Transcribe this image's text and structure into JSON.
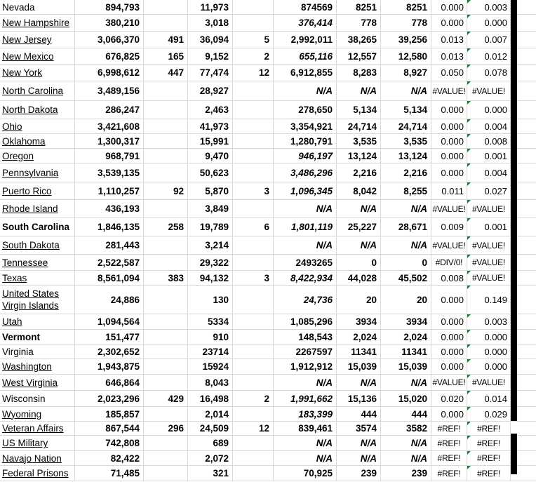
{
  "sheet": {
    "gridline_color": "#d9d9d9",
    "thick_border_color": "#000000",
    "error_indicator_color": "#1e7b3c",
    "error_indicator_shape": "green-triangle-top-left-of-last-column-cell",
    "rows": [
      {
        "name": "Nevada",
        "u": false,
        "nb": false,
        "b": "894,793",
        "c": "",
        "d": "11,973",
        "e": "",
        "f": "874569",
        "fi": false,
        "g": "8251",
        "h": "8251",
        "i": "0.000",
        "j": "0.003"
      },
      {
        "name": "New Hampshire",
        "u": true,
        "nb": false,
        "b": "380,210",
        "c": "",
        "d": "3,018",
        "e": "",
        "f": "376,414",
        "fi": true,
        "g": "778",
        "h": "778",
        "i": "0.000",
        "j": "0.000"
      },
      {
        "name": "New Jersey",
        "u": true,
        "nb": false,
        "b": "3,066,370",
        "c": "491",
        "d": "36,094",
        "e": "5",
        "f": "2,992,011",
        "fi": false,
        "g": "38,265",
        "h": "39,256",
        "i": "0.013",
        "j": "0.007"
      },
      {
        "name": "New Mexico",
        "u": true,
        "nb": false,
        "b": "676,825",
        "c": "165",
        "d": "9,152",
        "e": "2",
        "f": "655,116",
        "fi": true,
        "g": "12,557",
        "h": "12,580",
        "i": "0.013",
        "j": "0.012"
      },
      {
        "name": "New York",
        "u": true,
        "nb": false,
        "b": "6,998,612",
        "c": "447",
        "d": "77,474",
        "e": "12",
        "f": "6,912,855",
        "fi": false,
        "g": "8,283",
        "h": "8,927",
        "i": "0.050",
        "j": "0.078"
      },
      {
        "name": "North Carolina",
        "u": true,
        "nb": false,
        "b": "3,489,156",
        "c": "",
        "d": "28,927",
        "e": "",
        "f": "N/A",
        "fi": true,
        "g": "N/A",
        "h": "N/A",
        "i": "#VALUE!",
        "j": "#VALUE!"
      },
      {
        "name": "North Dakota",
        "u": true,
        "nb": false,
        "b": "286,247",
        "c": "",
        "d": "2,463",
        "e": "",
        "f": "278,650",
        "fi": false,
        "g": "5,134",
        "h": "5,134",
        "i": "0.000",
        "j": "0.000"
      },
      {
        "name": "Ohio",
        "u": true,
        "nb": false,
        "b": "3,421,608",
        "c": "",
        "d": "41,973",
        "e": "",
        "f": "3,354,921",
        "fi": false,
        "g": "24,714",
        "h": "24,714",
        "i": "0.000",
        "j": "0.004"
      },
      {
        "name": "Oklahoma",
        "u": true,
        "nb": false,
        "b": "1,300,317",
        "c": "",
        "d": "15,991",
        "e": "",
        "f": "1,280,791",
        "fi": false,
        "g": "3,535",
        "h": "3,535",
        "i": "0.000",
        "j": "0.008"
      },
      {
        "name": "Oregon",
        "u": true,
        "nb": false,
        "b": "968,791",
        "c": "",
        "d": "9,470",
        "e": "",
        "f": "946,197",
        "fi": true,
        "g": "13,124",
        "h": "13,124",
        "i": "0.000",
        "j": "0.001"
      },
      {
        "name": "Pennsylvania",
        "u": true,
        "nb": false,
        "b": "3,539,135",
        "c": "",
        "d": "50,623",
        "e": "",
        "f": "3,486,296",
        "fi": true,
        "g": "2,216",
        "h": "2,216",
        "i": "0.000",
        "j": "0.004"
      },
      {
        "name": "Puerto Rico",
        "u": true,
        "nb": false,
        "b": "1,110,257",
        "c": "92",
        "d": "5,870",
        "e": "3",
        "f": "1,096,345",
        "fi": true,
        "g": "8,042",
        "h": "8,255",
        "i": "0.011",
        "j": "0.027"
      },
      {
        "name": "Rhode Island",
        "u": true,
        "nb": false,
        "b": "436,193",
        "c": "",
        "d": "3,849",
        "e": "",
        "f": "N/A",
        "fi": true,
        "g": "N/A",
        "h": "N/A",
        "i": "#VALUE!",
        "j": "#VALUE!"
      },
      {
        "name": "South Carolina",
        "u": false,
        "nb": true,
        "b": "1,846,135",
        "c": "258",
        "d": "19,789",
        "e": "6",
        "f": "1,801,119",
        "fi": true,
        "g": "25,227",
        "h": "28,671",
        "i": "0.009",
        "j": "0.001"
      },
      {
        "name": "South Dakota",
        "u": true,
        "nb": false,
        "b": "281,443",
        "c": "",
        "d": "3,214",
        "e": "",
        "f": "N/A",
        "fi": true,
        "g": "N/A",
        "h": "N/A",
        "i": "#VALUE!",
        "j": "#VALUE!"
      },
      {
        "name": "Tennessee",
        "u": true,
        "nb": false,
        "b": "2,522,587",
        "c": "",
        "d": "29,322",
        "e": "",
        "f": "2493265",
        "fi": false,
        "g": "0",
        "h": "0",
        "i": "#DIV/0!",
        "j": "#VALUE!"
      },
      {
        "name": "Texas",
        "u": true,
        "nb": false,
        "b": "8,561,094",
        "c": "383",
        "d": "94,132",
        "e": "3",
        "f": "8,422,934",
        "fi": true,
        "g": "44,028",
        "h": "45,502",
        "i": "0.008",
        "j": "#VALUE!"
      },
      {
        "name": "United States Virgin Islands",
        "u": true,
        "nb": false,
        "b": "24,886",
        "c": "",
        "d": "130",
        "e": "",
        "f": "24,736",
        "fi": true,
        "g": "20",
        "h": "20",
        "i": "0.000",
        "j": "0.149"
      },
      {
        "name": "Utah",
        "u": true,
        "nb": false,
        "b": "1,094,564",
        "c": "",
        "d": "5334",
        "e": "",
        "f": "1,085,296",
        "fi": false,
        "g": "3934",
        "h": "3934",
        "i": "0.000",
        "j": "0.003"
      },
      {
        "name": "Vermont",
        "u": false,
        "nb": true,
        "b": "151,477",
        "c": "",
        "d": "910",
        "e": "",
        "f": "148,543",
        "fi": false,
        "g": "2,024",
        "h": "2,024",
        "i": "0.000",
        "j": "0.000"
      },
      {
        "name": "Virginia",
        "u": false,
        "nb": false,
        "b": "2,302,652",
        "c": "",
        "d": "23714",
        "e": "",
        "f": "2267597",
        "fi": false,
        "g": "11341",
        "h": "11341",
        "i": "0.000",
        "j": "0.000"
      },
      {
        "name": "Washington",
        "u": true,
        "nb": false,
        "b": "1,943,875",
        "c": "",
        "d": "15924",
        "e": "",
        "f": "1,912,912",
        "fi": false,
        "g": "15,039",
        "h": "15,039",
        "i": "0.000",
        "j": "0.000"
      },
      {
        "name": "West Virginia",
        "u": true,
        "nb": false,
        "b": "646,864",
        "c": "",
        "d": "8,043",
        "e": "",
        "f": "N/A",
        "fi": true,
        "g": "N/A",
        "h": "N/A",
        "i": "#VALUE!",
        "j": "#VALUE!"
      },
      {
        "name": "Wisconsin",
        "u": false,
        "nb": false,
        "b": "2,023,296",
        "c": "429",
        "d": "16,498",
        "e": "2",
        "f": "1,991,662",
        "fi": true,
        "g": "15,136",
        "h": "15,020",
        "i": "0.020",
        "j": "0.014"
      },
      {
        "name": "Wyoming",
        "u": true,
        "nb": false,
        "b": "185,857",
        "c": "",
        "d": "2,014",
        "e": "",
        "f": "183,399",
        "fi": true,
        "g": "444",
        "h": "444",
        "i": "0.000",
        "j": "0.029"
      },
      {
        "name": "Veteran Affairs",
        "u": true,
        "nb": false,
        "b": "867,544",
        "c": "296",
        "d": "24,509",
        "e": "12",
        "f": "839,461",
        "fi": false,
        "g": "3574",
        "h": "3582",
        "i": "#REF!",
        "j": "#REF!"
      },
      {
        "name": "US Military",
        "u": true,
        "nb": false,
        "b": "742,808",
        "c": "",
        "d": "689",
        "e": "",
        "f": "N/A",
        "fi": true,
        "g": "N/A",
        "h": "N/A",
        "i": "#REF!",
        "j": "#REF!"
      },
      {
        "name": "Navajo Nation",
        "u": true,
        "nb": false,
        "b": "82,422",
        "c": "",
        "d": "2,072",
        "e": "",
        "f": "N/A",
        "fi": true,
        "g": "N/A",
        "h": "N/A",
        "i": "#REF!",
        "j": "#REF!"
      },
      {
        "name": "Federal Prisons",
        "u": true,
        "nb": false,
        "b": "71,485",
        "c": "",
        "d": "321",
        "e": "",
        "f": "70,925",
        "fi": false,
        "g": "239",
        "h": "239",
        "i": "#REF!",
        "j": "#REF!"
      }
    ]
  }
}
